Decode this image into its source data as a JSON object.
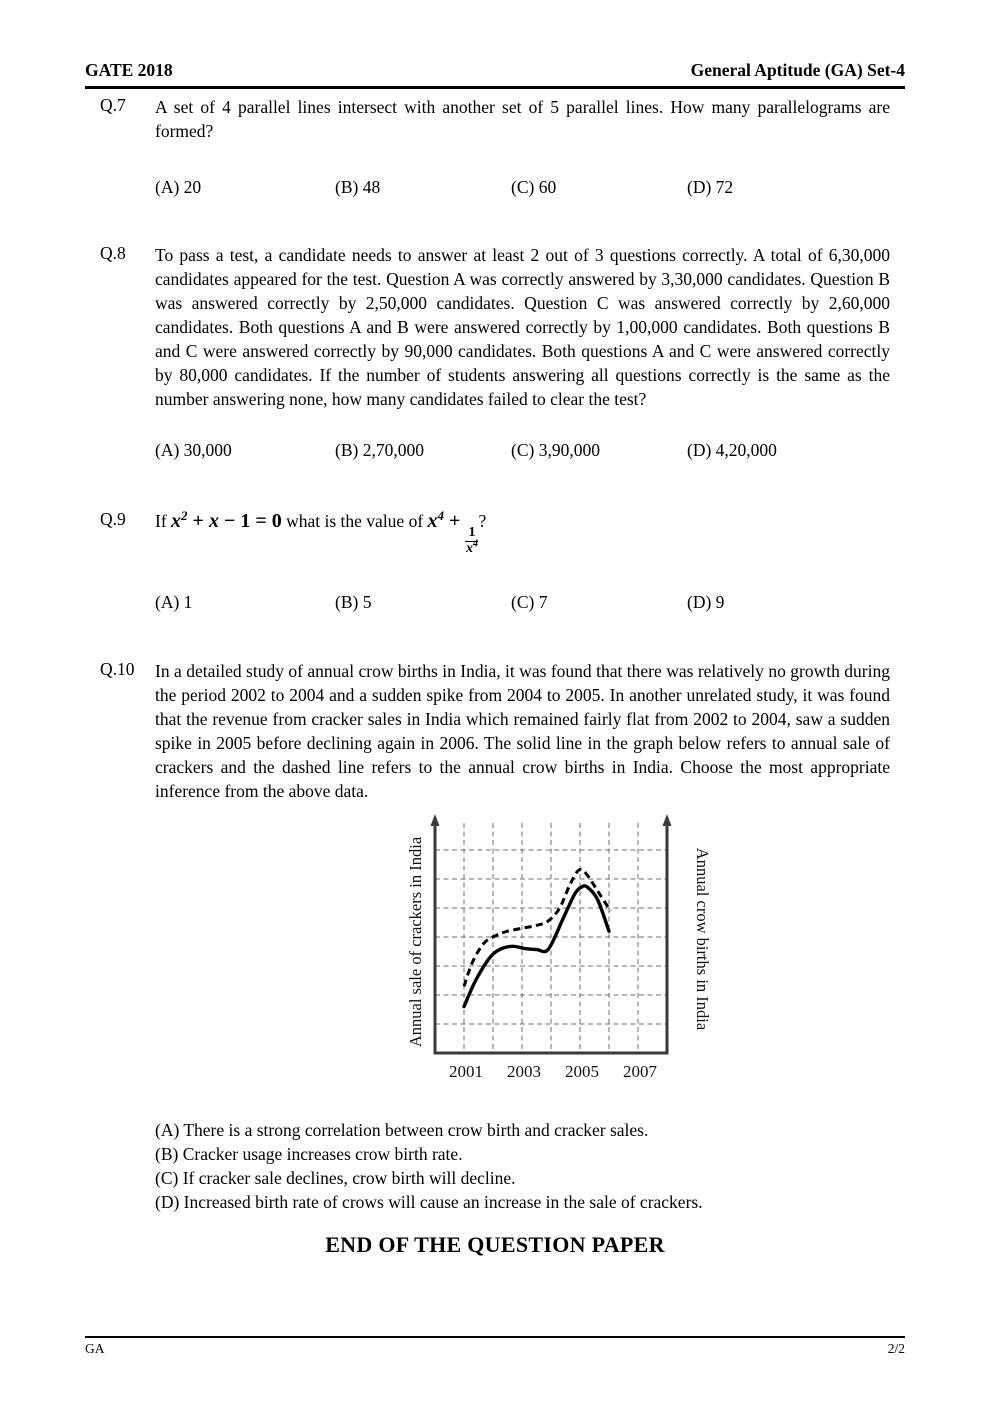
{
  "header": {
    "left_title": "GATE 2018",
    "right_title": "General Aptitude (GA) Set-4"
  },
  "q7": {
    "number": "Q.7",
    "text": "A set of 4 parallel lines intersect with another set of 5 parallel lines. How many parallelograms are formed?",
    "options": [
      "(A) 20",
      "(B) 48",
      "(C) 60",
      "(D) 72"
    ]
  },
  "q8": {
    "number": "Q.8",
    "text": "To pass a test, a candidate needs to answer at least 2 out of 3 questions correctly. A total of 6,30,000 candidates appeared for the test. Question A was correctly answered by 3,30,000 candidates. Question B was answered correctly by 2,50,000 candidates. Question C was answered correctly by 2,60,000 candidates. Both questions A and B were answered correctly by 1,00,000 candidates. Both questions B and C were answered correctly by 90,000 candidates. Both questions A and C were answered correctly by 80,000 candidates. If the number of students answering all questions correctly is the same as the number answering none, how many candidates failed to clear the test?",
    "options": [
      "(A) 30,000",
      "(B) 2,70,000",
      "(C) 3,90,000",
      "(D) 4,20,000"
    ]
  },
  "q9": {
    "number": "Q.9",
    "formula_segments": [
      {
        "t": "word",
        "v": "If "
      },
      {
        "t": "var",
        "v": "x"
      },
      {
        "t": "sup",
        "v": "2"
      },
      {
        "t": "op",
        "v": " + "
      },
      {
        "t": "var",
        "v": "x"
      },
      {
        "t": "op",
        "v": " − 1 = 0"
      },
      {
        "t": "word",
        "v": " what is the value of "
      },
      {
        "t": "var",
        "v": "x"
      },
      {
        "t": "sup",
        "v": "4"
      },
      {
        "t": "op",
        "v": " + "
      },
      {
        "t": "frac",
        "num": "1",
        "den_var": "x",
        "den_sup": "4"
      },
      {
        "t": "word",
        "v": "?"
      }
    ],
    "options": [
      "(A) 1",
      "(B) 5",
      "(C) 7",
      "(D) 9"
    ]
  },
  "q10": {
    "number": "Q.10",
    "text": "In a detailed study of annual crow births in India, it was found that there was relatively no growth during the period 2002 to 2004 and a sudden spike from 2004 to 2005. In another unrelated study, it was found that the revenue from cracker sales in India which remained fairly flat from 2002 to 2004, saw a sudden spike in 2005 before declining again in 2006. The solid line in the graph below refers to annual sale of crackers and the dashed line refers to the annual crow births in India. Choose the most appropriate inference from the above data.",
    "options": [
      "(A) There is a strong correlation between crow birth and cracker sales.",
      "(B) Cracker usage increases crow birth rate.",
      "(C) If cracker sale declines, crow birth will decline.",
      "(D) Increased birth rate of crows will cause an increase in the sale of crackers."
    ]
  },
  "chart_data": {
    "type": "line",
    "title": "",
    "left_axis_label": "Annual sale of crackers in India",
    "right_axis_label": "Annual crow births in India",
    "x_ticks": [
      "2001",
      "2003",
      "2005",
      "2007"
    ],
    "x_range": [
      2000,
      2008
    ],
    "y_range_relative_units": [
      0,
      8
    ],
    "grid": "dashed, both directions, one cell per year and per unit",
    "legend_position": "none (line styles described in question text)",
    "series": [
      {
        "name": "Annual sale of crackers in India",
        "line_style": "solid",
        "axis": "left",
        "points": [
          [
            2001,
            1.6
          ],
          [
            2001.4,
            2.5
          ],
          [
            2001.9,
            3.3
          ],
          [
            2002.3,
            3.6
          ],
          [
            2002.7,
            3.68
          ],
          [
            2003.1,
            3.6
          ],
          [
            2003.5,
            3.57
          ],
          [
            2003.9,
            3.57
          ],
          [
            2004.4,
            4.6
          ],
          [
            2004.8,
            5.45
          ],
          [
            2005.05,
            5.72
          ],
          [
            2005.25,
            5.72
          ],
          [
            2005.6,
            5.3
          ],
          [
            2006.0,
            4.2
          ]
        ]
      },
      {
        "name": "Annual crow births in India",
        "line_style": "dashed",
        "axis": "right",
        "points": [
          [
            2001,
            2.3
          ],
          [
            2001.3,
            3.15
          ],
          [
            2001.7,
            3.8
          ],
          [
            2002.1,
            4.05
          ],
          [
            2002.5,
            4.2
          ],
          [
            2003.0,
            4.3
          ],
          [
            2003.5,
            4.4
          ],
          [
            2003.9,
            4.55
          ],
          [
            2004.3,
            5.0
          ],
          [
            2004.65,
            5.8
          ],
          [
            2004.95,
            6.3
          ],
          [
            2005.2,
            6.2
          ],
          [
            2005.6,
            5.6
          ],
          [
            2006.05,
            4.9
          ]
        ]
      }
    ]
  },
  "end_note": "END OF THE QUESTION PAPER",
  "footer": {
    "left": "GA",
    "right": "2/2"
  }
}
